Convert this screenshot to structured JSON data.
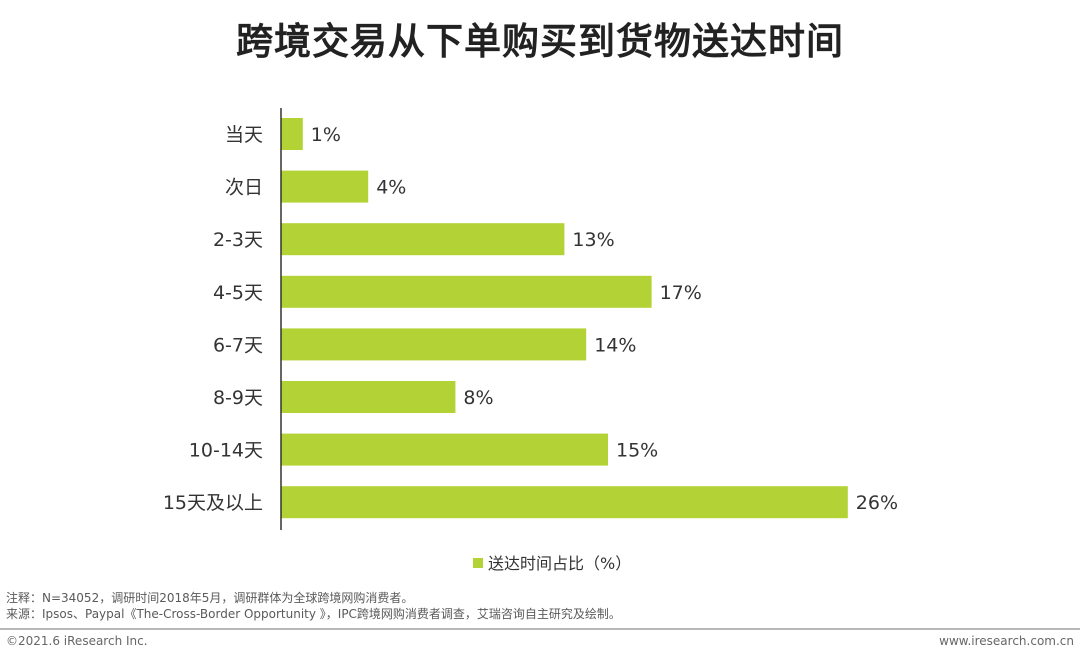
{
  "title": "跨境交易从下单购买到货物送达时间",
  "chart_data": {
    "type": "bar",
    "orientation": "horizontal",
    "title": "跨境交易从下单购买到货物送达时间",
    "categories": [
      "当天",
      "次日",
      "2-3天",
      "4-5天",
      "6-7天",
      "8-9天",
      "10-14天",
      "15天及以上"
    ],
    "series": [
      {
        "name": "送达时间占比（%）",
        "values": [
          1,
          4,
          13,
          17,
          14,
          8,
          15,
          26
        ],
        "value_labels": [
          "1%",
          "4%",
          "13%",
          "17%",
          "14%",
          "8%",
          "15%",
          "26%"
        ],
        "color": "#b2d235"
      }
    ],
    "xlim": [
      0,
      26
    ],
    "grid": false,
    "legend_placement": "bottom-center"
  },
  "legend": {
    "label": "送达时间占比（%）"
  },
  "footer": {
    "note": "注释：N=34052，调研时间2018年5月，调研群体为全球跨境网购消费者。",
    "source": "来源：Ipsos、Paypal《The-Cross-Border Opportunity 》，IPC跨境网购消费者调查，艾瑞咨询自主研究及绘制。",
    "copyright": "©2021.6 iResearch Inc.",
    "website": "www.iresearch.com.cn"
  },
  "colors": {
    "bar": "#b2d235",
    "axis": "#333333",
    "text": "#333333",
    "divider": "#b8b8b8"
  }
}
